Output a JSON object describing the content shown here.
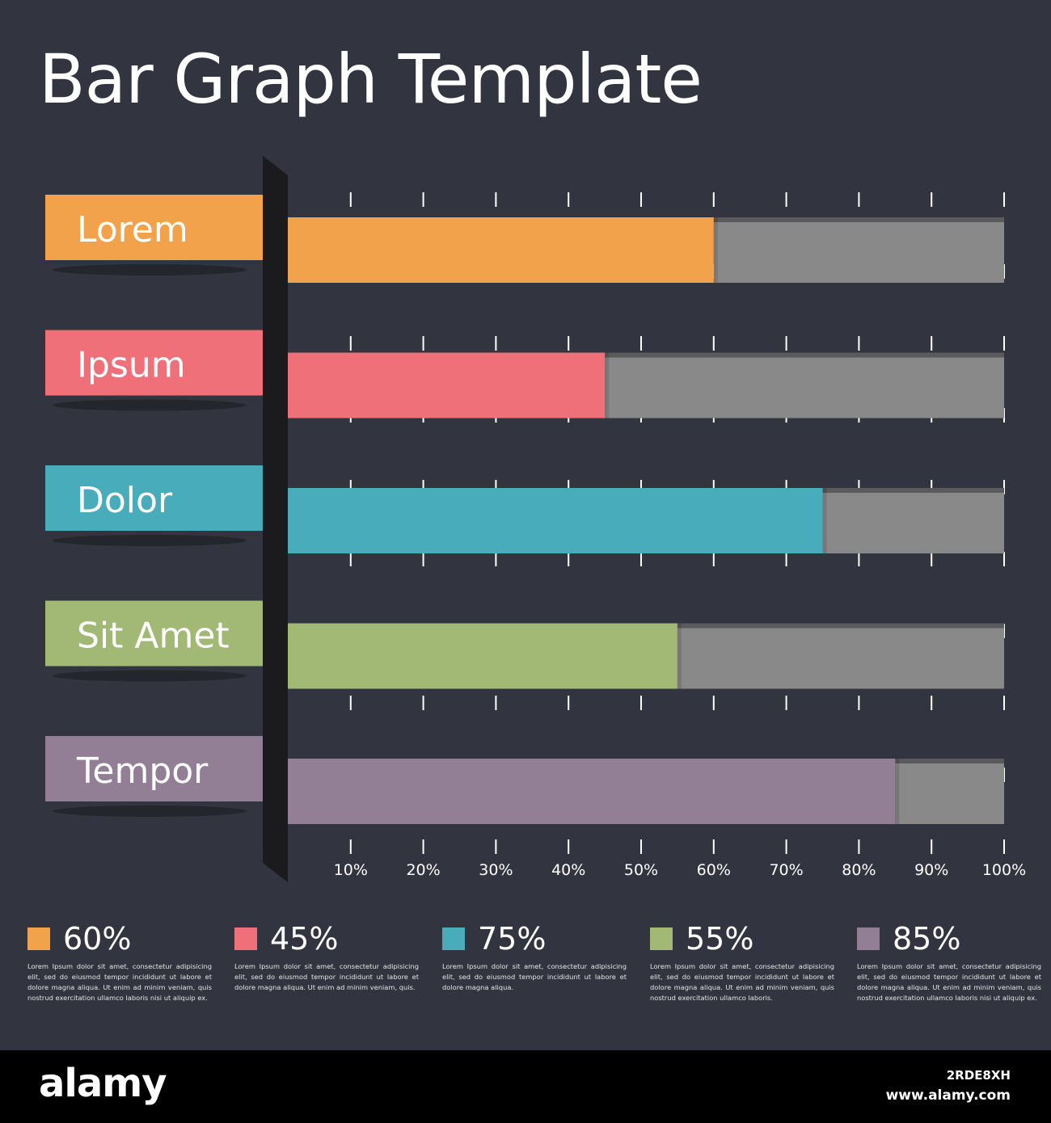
{
  "title": "Bar Graph Template",
  "chart_data": {
    "type": "bar",
    "orientation": "horizontal",
    "title": "Bar Graph Template",
    "categories": [
      "Lorem",
      "Ipsum",
      "Dolor",
      "Sit Amet",
      "Tempor"
    ],
    "values": [
      60,
      45,
      75,
      55,
      85
    ],
    "colors": [
      "#f2a24b",
      "#f07079",
      "#49acba",
      "#a1b975",
      "#937f95"
    ],
    "remainder_color": "#898989",
    "xlim": [
      0,
      100
    ],
    "ticks": [
      "10%",
      "20%",
      "30%",
      "40%",
      "50%",
      "60%",
      "70%",
      "80%",
      "90%",
      "100%"
    ],
    "grid": "dashed vertical ticks"
  },
  "legend": [
    {
      "value": "60%",
      "color": "#f2a24b",
      "text": "Lorem Ipsum dolor sit amet, consectetur adipisicing elit, sed do eiusmod tempor incididunt ut labore et dolore magna aliqua. Ut enim ad minim veniam, quis nostrud exercitation ullamco laboris nisi ut aliquip ex."
    },
    {
      "value": "45%",
      "color": "#f07079",
      "text": "Lorem Ipsum dolor sit amet, consectetur adipisicing elit, sed do eiusmod tempor incididunt ut labore et dolore magna aliqua. Ut enim ad minim veniam, quis."
    },
    {
      "value": "75%",
      "color": "#49acba",
      "text": "Lorem Ipsum dolor sit amet, consectetur adipisicing elit, sed do eiusmod tempor incididunt ut labore et dolore magna aliqua."
    },
    {
      "value": "55%",
      "color": "#a1b975",
      "text": "Lorem Ipsum dolor sit amet, consectetur adipisicing elit, sed do eiusmod tempor incididunt ut labore et dolore magna aliqua. Ut enim ad minim veniam, quis nostrud exercitation ullamco laboris."
    },
    {
      "value": "85%",
      "color": "#937f95",
      "text": "Lorem Ipsum dolor sit amet, consectetur adipisicing elit, sed do eiusmod tempor incididunt ut labore et dolore magna aliqua. Ut enim ad minim veniam, quis nostrud exercitation ullamco laboris nisi ut aliquip ex."
    }
  ],
  "footer": {
    "brand": "alamy",
    "image_id": "2RDE8XH",
    "url": "www.alamy.com"
  }
}
